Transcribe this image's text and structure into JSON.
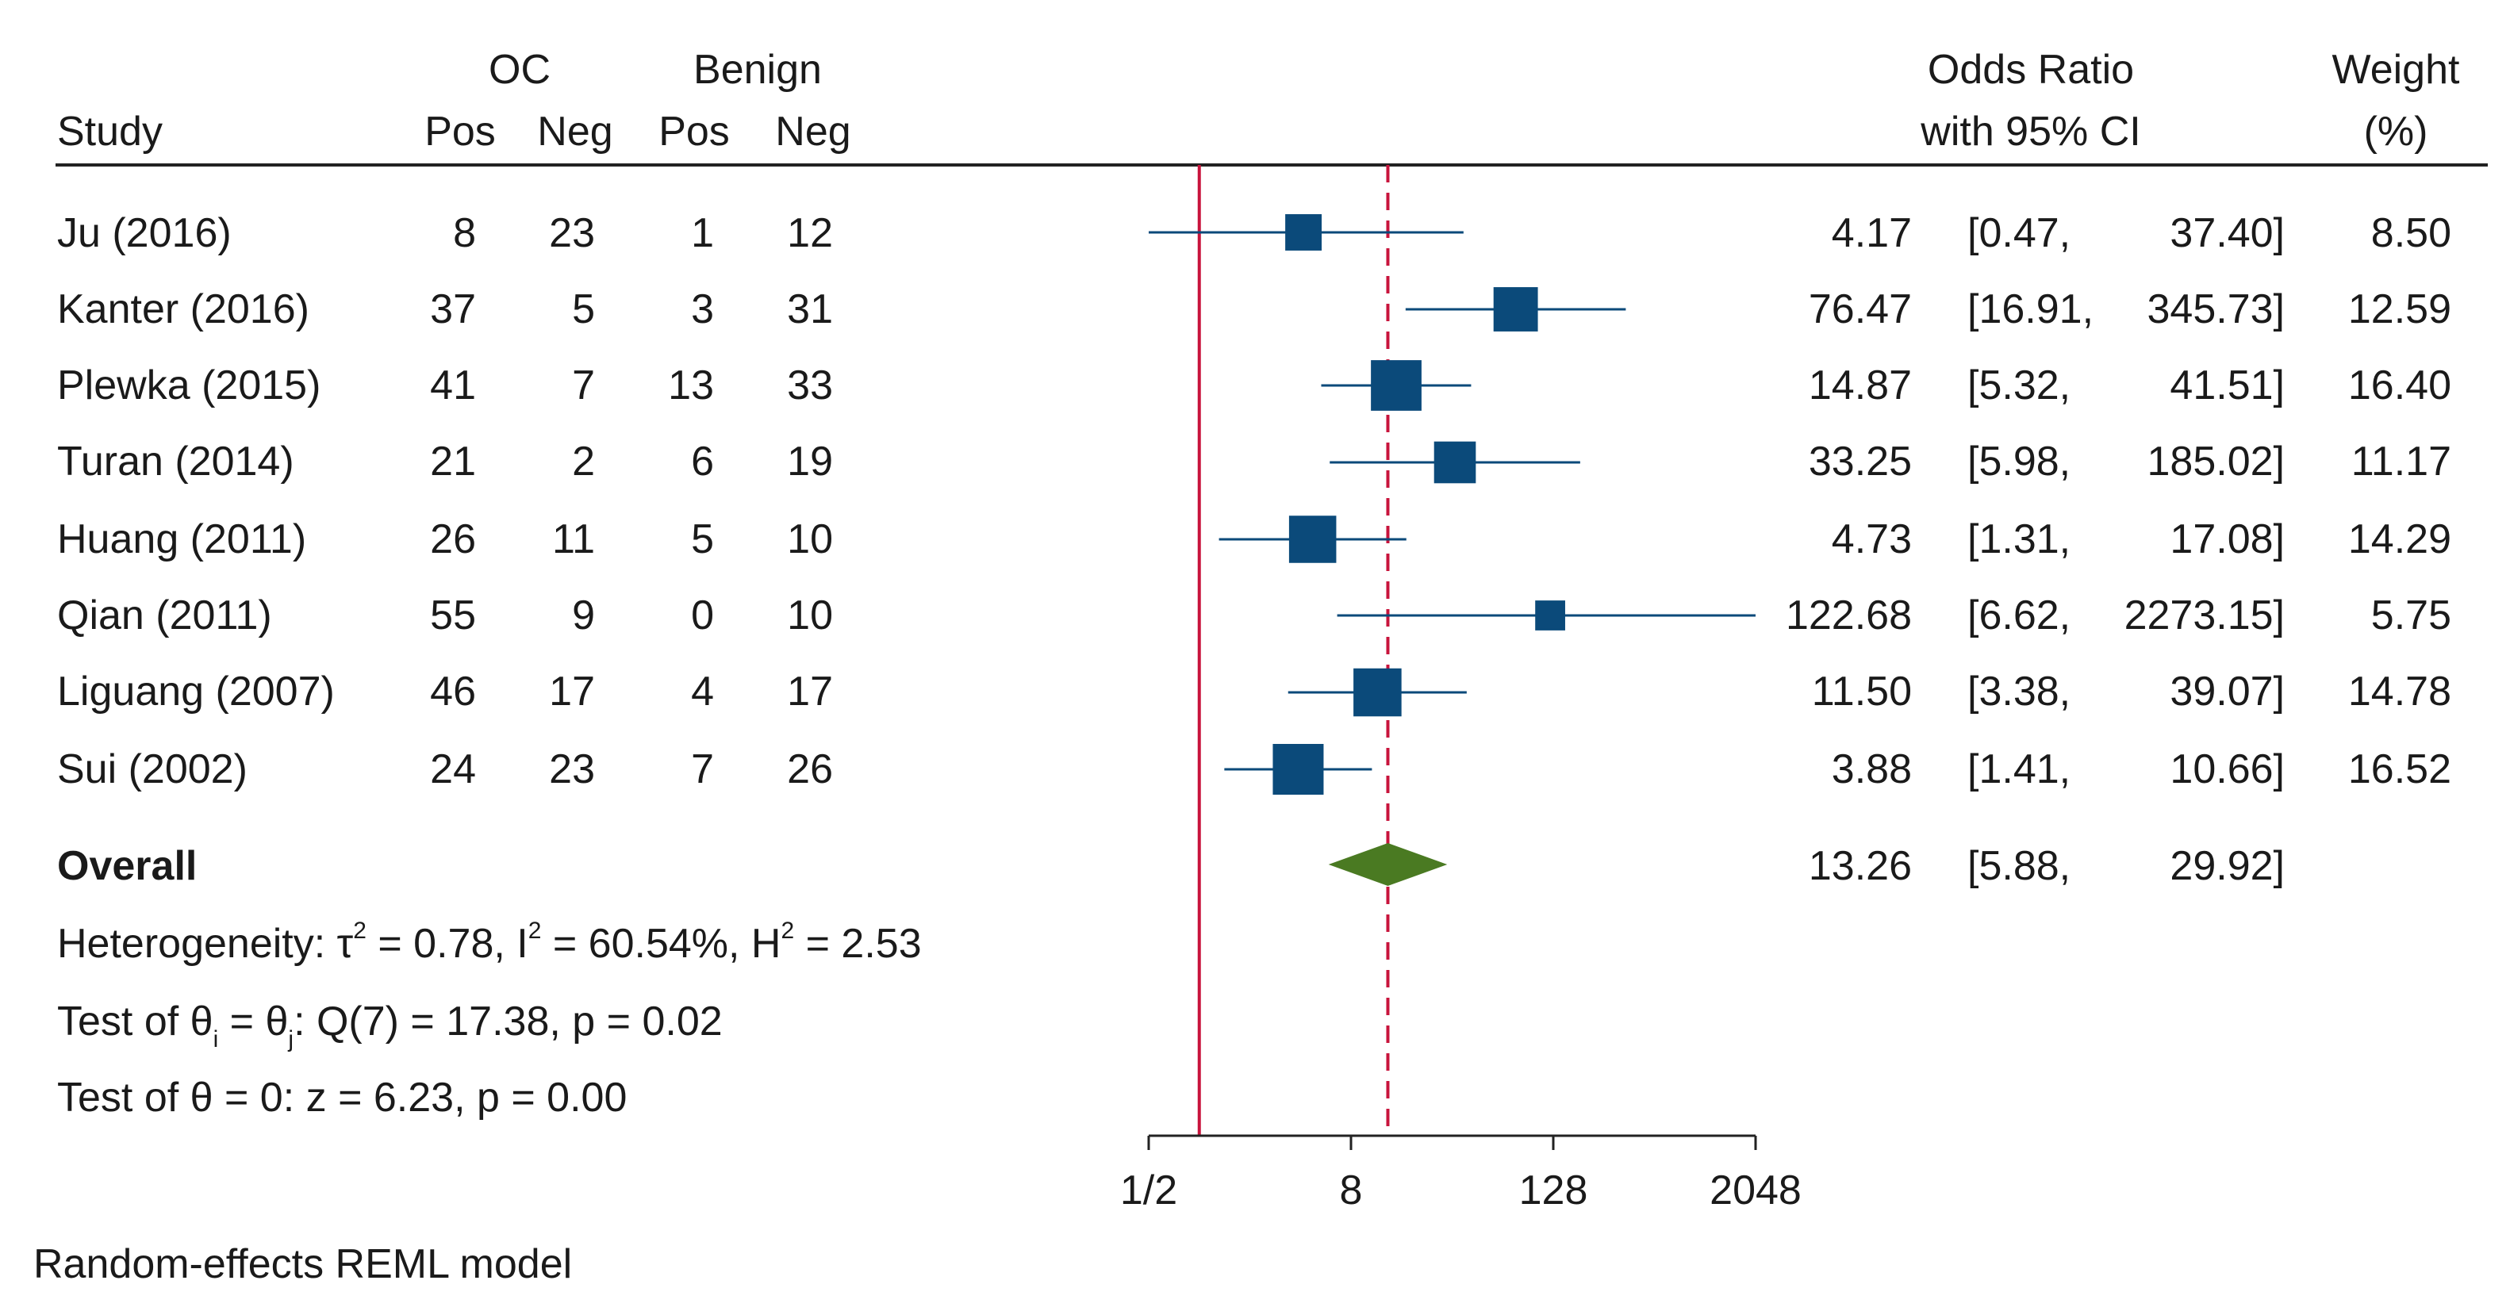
{
  "header": {
    "oc_group": "OC",
    "benign_group": "Benign",
    "study": "Study",
    "pos": "Pos",
    "neg": "Neg",
    "or_line1": "Odds Ratio",
    "or_line2": "with 95% CI",
    "weight_line1": "Weight",
    "weight_line2": "(%)"
  },
  "studies": [
    {
      "name": "Ju (2016)",
      "oc_pos": "8",
      "oc_neg": "23",
      "ben_pos": "1",
      "ben_neg": "12",
      "or": "4.17",
      "lo": "[0.47,",
      "hi": "37.40]",
      "weight": "8.50"
    },
    {
      "name": "Kanter (2016)",
      "oc_pos": "37",
      "oc_neg": "5",
      "ben_pos": "3",
      "ben_neg": "31",
      "or": "76.47",
      "lo": "[16.91,",
      "hi": "345.73]",
      "weight": "12.59"
    },
    {
      "name": "Plewka (2015)",
      "oc_pos": "41",
      "oc_neg": "7",
      "ben_pos": "13",
      "ben_neg": "33",
      "or": "14.87",
      "lo": "[5.32,",
      "hi": "41.51]",
      "weight": "16.40"
    },
    {
      "name": "Turan (2014)",
      "oc_pos": "21",
      "oc_neg": "2",
      "ben_pos": "6",
      "ben_neg": "19",
      "or": "33.25",
      "lo": "[5.98,",
      "hi": "185.02]",
      "weight": "11.17"
    },
    {
      "name": "Huang (2011)",
      "oc_pos": "26",
      "oc_neg": "11",
      "ben_pos": "5",
      "ben_neg": "10",
      "or": "4.73",
      "lo": "[1.31,",
      "hi": "17.08]",
      "weight": "14.29"
    },
    {
      "name": "Qian (2011)",
      "oc_pos": "55",
      "oc_neg": "9",
      "ben_pos": "0",
      "ben_neg": "10",
      "or": "122.68",
      "lo": "[6.62,",
      "hi": "2273.15]",
      "weight": "5.75"
    },
    {
      "name": "Liguang (2007)",
      "oc_pos": "46",
      "oc_neg": "17",
      "ben_pos": "4",
      "ben_neg": "17",
      "or": "11.50",
      "lo": "[3.38,",
      "hi": "39.07]",
      "weight": "14.78"
    },
    {
      "name": "Sui (2002)",
      "oc_pos": "24",
      "oc_neg": "23",
      "ben_pos": "7",
      "ben_neg": "26",
      "or": "3.88",
      "lo": "[1.41,",
      "hi": "10.66]",
      "weight": "16.52"
    }
  ],
  "overall": {
    "label": "Overall",
    "or": "13.26",
    "lo": "[5.88,",
    "hi": "29.92]"
  },
  "stats": {
    "het_prefix": "Heterogeneity: τ",
    "het_sup1": "2",
    "het_mid1": " = 0.78, I",
    "het_sup2": "2",
    "het_mid2": " = 60.54%, H",
    "het_sup3": "2",
    "het_end": " = 2.53",
    "test1_prefix": "Test of θ",
    "test1_sub1": "i",
    "test1_mid": " = θ",
    "test1_sub2": "j",
    "test1_end": ": Q(7) = 17.38, p = 0.02",
    "test2": "Test of θ = 0: z = 6.23, p = 0.00"
  },
  "footer": "Random-effects REML model",
  "colors": {
    "marker": "#0b4a7a",
    "ci_line": "#0b4a7a",
    "diamond": "#4a7a22",
    "null_line": "#c8143c",
    "overall_line": "#c8143c",
    "text": "#1a1a1a"
  },
  "chart_data": {
    "type": "forest",
    "xscale": "log2",
    "xlim": [
      0.5,
      2048
    ],
    "xticks": [
      0.5,
      8,
      128,
      2048
    ],
    "xtick_labels": [
      "1/2",
      "8",
      "128",
      "2048"
    ],
    "null_value": 1,
    "overall_value": 13.26,
    "series": [
      {
        "name": "Ju (2016)",
        "or": 4.17,
        "lower": 0.47,
        "upper": 37.4,
        "weight": 8.5
      },
      {
        "name": "Kanter (2016)",
        "or": 76.47,
        "lower": 16.91,
        "upper": 345.73,
        "weight": 12.59
      },
      {
        "name": "Plewka (2015)",
        "or": 14.87,
        "lower": 5.32,
        "upper": 41.51,
        "weight": 16.4
      },
      {
        "name": "Turan (2014)",
        "or": 33.25,
        "lower": 5.98,
        "upper": 185.02,
        "weight": 11.17
      },
      {
        "name": "Huang (2011)",
        "or": 4.73,
        "lower": 1.31,
        "upper": 17.08,
        "weight": 14.29
      },
      {
        "name": "Qian (2011)",
        "or": 122.68,
        "lower": 6.62,
        "upper": 2273.15,
        "weight": 5.75
      },
      {
        "name": "Liguang (2007)",
        "or": 11.5,
        "lower": 3.38,
        "upper": 39.07,
        "weight": 14.78
      },
      {
        "name": "Sui (2002)",
        "or": 3.88,
        "lower": 1.41,
        "upper": 10.66,
        "weight": 16.52
      }
    ],
    "overall": {
      "or": 13.26,
      "lower": 5.88,
      "upper": 29.92
    }
  }
}
